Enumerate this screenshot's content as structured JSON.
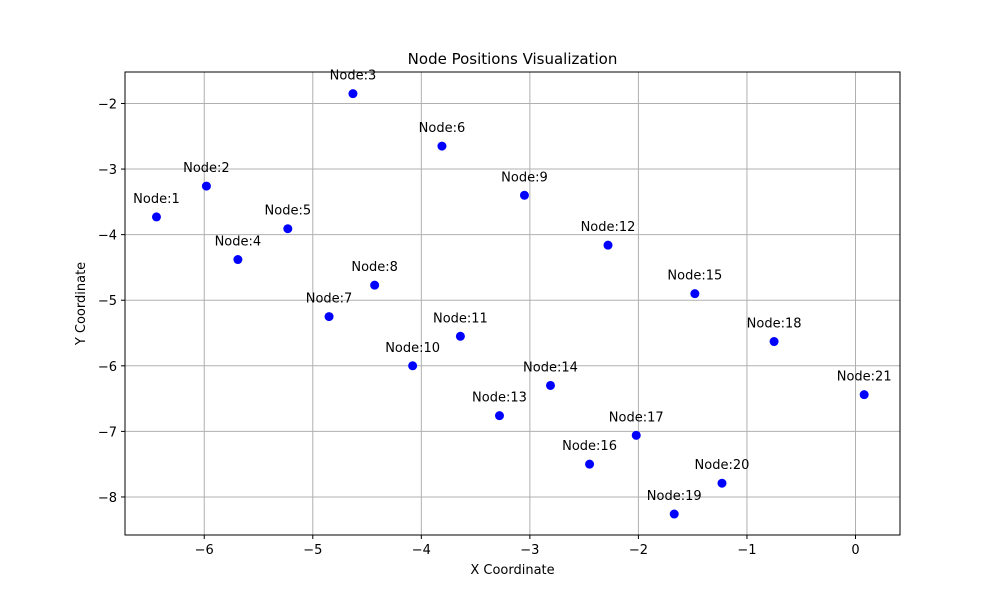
{
  "chart_data": {
    "type": "scatter",
    "title": "Node Positions Visualization",
    "xlabel": "X Coordinate",
    "ylabel": "Y Coordinate",
    "xlim": [
      -6.73,
      0.41
    ],
    "ylim": [
      -8.58,
      -1.52
    ],
    "xticks": [
      -6,
      -5,
      -4,
      -3,
      -2,
      -1,
      0
    ],
    "yticks": [
      -8,
      -7,
      -6,
      -5,
      -4,
      -3,
      -2
    ],
    "xtick_labels": [
      "−6",
      "−5",
      "−4",
      "−3",
      "−2",
      "−1",
      "0"
    ],
    "ytick_labels": [
      "−8",
      "−7",
      "−6",
      "−5",
      "−4",
      "−3",
      "−2"
    ],
    "grid": true,
    "marker_color": "#0000ff",
    "points": [
      {
        "label": "Node:1",
        "x": -6.44,
        "y": -3.73
      },
      {
        "label": "Node:2",
        "x": -5.98,
        "y": -3.26
      },
      {
        "label": "Node:3",
        "x": -4.63,
        "y": -1.85
      },
      {
        "label": "Node:4",
        "x": -5.69,
        "y": -4.38
      },
      {
        "label": "Node:5",
        "x": -5.23,
        "y": -3.91
      },
      {
        "label": "Node:6",
        "x": -3.81,
        "y": -2.65
      },
      {
        "label": "Node:7",
        "x": -4.85,
        "y": -5.25
      },
      {
        "label": "Node:8",
        "x": -4.43,
        "y": -4.77
      },
      {
        "label": "Node:9",
        "x": -3.05,
        "y": -3.4
      },
      {
        "label": "Node:10",
        "x": -4.08,
        "y": -6.0
      },
      {
        "label": "Node:11",
        "x": -3.64,
        "y": -5.55
      },
      {
        "label": "Node:12",
        "x": -2.28,
        "y": -4.16
      },
      {
        "label": "Node:13",
        "x": -3.28,
        "y": -6.76
      },
      {
        "label": "Node:14",
        "x": -2.81,
        "y": -6.3
      },
      {
        "label": "Node:15",
        "x": -1.48,
        "y": -4.9
      },
      {
        "label": "Node:16",
        "x": -2.45,
        "y": -7.5
      },
      {
        "label": "Node:17",
        "x": -2.02,
        "y": -7.06
      },
      {
        "label": "Node:18",
        "x": -0.75,
        "y": -5.63
      },
      {
        "label": "Node:19",
        "x": -1.67,
        "y": -8.26
      },
      {
        "label": "Node:20",
        "x": -1.23,
        "y": -7.79
      },
      {
        "label": "Node:21",
        "x": 0.08,
        "y": -6.44
      }
    ]
  }
}
